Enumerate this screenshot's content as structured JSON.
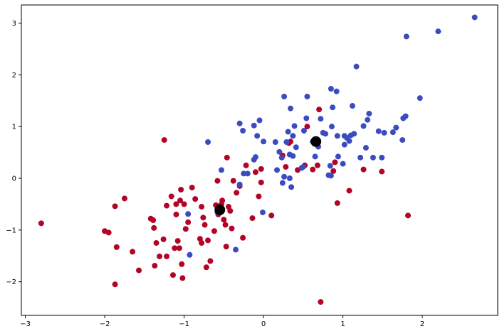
{
  "chart_data": {
    "type": "scatter",
    "title": "",
    "xlabel": "",
    "ylabel": "",
    "xlim": [
      -3.05,
      2.95
    ],
    "ylim": [
      -2.65,
      3.35
    ],
    "xticks": [
      -3,
      -2,
      -1,
      0,
      1,
      2
    ],
    "yticks": [
      -2,
      -1,
      0,
      1,
      2,
      3
    ],
    "xtick_labels": [
      "−3",
      "−2",
      "−1",
      "0",
      "1",
      "2"
    ],
    "ytick_labels": [
      "−2",
      "−1",
      "0",
      "1",
      "2",
      "3"
    ],
    "grid": false,
    "legend": "none",
    "series": [
      {
        "color": "#b40426",
        "points": [
          [
            -2.8,
            -0.87
          ],
          [
            -2.0,
            -1.02
          ],
          [
            -1.95,
            -1.05
          ],
          [
            -1.87,
            -0.54
          ],
          [
            -1.85,
            -1.33
          ],
          [
            -1.87,
            -2.05
          ],
          [
            -1.75,
            -0.39
          ],
          [
            -1.65,
            -1.42
          ],
          [
            -1.57,
            -1.78
          ],
          [
            -1.42,
            -0.78
          ],
          [
            -1.39,
            -0.81
          ],
          [
            -1.38,
            -0.96
          ],
          [
            -1.37,
            -1.69
          ],
          [
            -1.35,
            -1.25
          ],
          [
            -1.31,
            -1.51
          ],
          [
            -1.26,
            -1.18
          ],
          [
            -1.25,
            0.74
          ],
          [
            -1.22,
            -1.51
          ],
          [
            -1.22,
            -0.53
          ],
          [
            -1.16,
            -0.35
          ],
          [
            -1.14,
            -1.87
          ],
          [
            -1.12,
            -1.35
          ],
          [
            -1.1,
            -0.7
          ],
          [
            -1.1,
            -0.5
          ],
          [
            -1.08,
            -1.21
          ],
          [
            -1.06,
            -1.35
          ],
          [
            -1.05,
            -0.43
          ],
          [
            -1.04,
            -0.22
          ],
          [
            -1.03,
            -1.66
          ],
          [
            -1.02,
            -1.93
          ],
          [
            -1.0,
            -0.5
          ],
          [
            -0.98,
            -0.98
          ],
          [
            -0.95,
            -0.85
          ],
          [
            -0.9,
            -0.18
          ],
          [
            -0.86,
            -0.4
          ],
          [
            -0.8,
            -1.17
          ],
          [
            -0.78,
            -1.25
          ],
          [
            -0.76,
            -0.76
          ],
          [
            -0.74,
            -0.9
          ],
          [
            -0.72,
            -1.72
          ],
          [
            -0.7,
            -1.2
          ],
          [
            -0.67,
            -1.6
          ],
          [
            -0.62,
            -1.02
          ],
          [
            -0.6,
            -0.52
          ],
          [
            -0.58,
            -0.05
          ],
          [
            -0.55,
            -0.55
          ],
          [
            -0.52,
            -0.43
          ],
          [
            -0.5,
            -0.8
          ],
          [
            -0.48,
            -0.9
          ],
          [
            -0.47,
            -1.32
          ],
          [
            -0.46,
            0.4
          ],
          [
            -0.44,
            -0.55
          ],
          [
            -0.42,
            -0.63
          ],
          [
            -0.4,
            -0.97
          ],
          [
            -0.38,
            -0.05
          ],
          [
            -0.34,
            -0.28
          ],
          [
            -0.3,
            -0.15
          ],
          [
            -0.26,
            -1.15
          ],
          [
            -0.22,
            0.25
          ],
          [
            -0.14,
            -0.77
          ],
          [
            -0.1,
            0.12
          ],
          [
            -0.06,
            -0.35
          ],
          [
            -0.03,
            0.18
          ],
          [
            -0.03,
            -0.08
          ],
          [
            0.1,
            -0.72
          ],
          [
            0.24,
            0.44
          ],
          [
            0.28,
            0.22
          ],
          [
            0.32,
            0.68
          ],
          [
            0.34,
            0.71
          ],
          [
            0.43,
            0.16
          ],
          [
            0.52,
            0.25
          ],
          [
            0.55,
            1.0
          ],
          [
            0.62,
            0.17
          ],
          [
            0.68,
            0.25
          ],
          [
            0.7,
            1.33
          ],
          [
            0.72,
            -2.39
          ],
          [
            0.88,
            0.14
          ],
          [
            0.9,
            0.31
          ],
          [
            0.93,
            -0.48
          ],
          [
            1.08,
            -0.24
          ],
          [
            1.26,
            0.17
          ],
          [
            1.49,
            0.13
          ],
          [
            1.82,
            -0.72
          ],
          [
            -0.57,
            -0.7
          ],
          [
            -0.53,
            -0.5
          ],
          [
            -0.78,
            -0.55
          ]
        ]
      },
      {
        "color": "#3b4cc0",
        "points": [
          [
            -0.95,
            -0.69
          ],
          [
            -0.93,
            -1.48
          ],
          [
            -0.7,
            0.7
          ],
          [
            -0.58,
            -0.66
          ],
          [
            -0.53,
            0.16
          ],
          [
            -0.35,
            -1.38
          ],
          [
            -0.3,
            -0.12
          ],
          [
            -0.3,
            1.06
          ],
          [
            -0.26,
            0.92
          ],
          [
            -0.25,
            0.09
          ],
          [
            -0.2,
            0.09
          ],
          [
            -0.12,
            0.36
          ],
          [
            -0.12,
            1.02
          ],
          [
            -0.1,
            0.41
          ],
          [
            -0.08,
            0.82
          ],
          [
            -0.05,
            1.12
          ],
          [
            -0.01,
            -0.66
          ],
          [
            0.0,
            0.71
          ],
          [
            0.15,
            0.7
          ],
          [
            0.17,
            0.16
          ],
          [
            0.2,
            0.51
          ],
          [
            0.23,
            0.4
          ],
          [
            0.24,
            -0.09
          ],
          [
            0.26,
            1.58
          ],
          [
            0.26,
            0.03
          ],
          [
            0.29,
            0.7
          ],
          [
            0.31,
            0.9
          ],
          [
            0.33,
            0.46
          ],
          [
            0.33,
            0.0
          ],
          [
            0.34,
            1.35
          ],
          [
            0.35,
            -0.17
          ],
          [
            0.37,
            0.43
          ],
          [
            0.37,
            0.82
          ],
          [
            0.39,
            1.01
          ],
          [
            0.41,
            0.6
          ],
          [
            0.48,
            0.2
          ],
          [
            0.5,
            0.22
          ],
          [
            0.51,
            0.92
          ],
          [
            0.54,
            1.16
          ],
          [
            0.55,
            1.58
          ],
          [
            0.62,
            0.71
          ],
          [
            0.69,
            0.61
          ],
          [
            0.72,
            1.15
          ],
          [
            0.75,
            0.88
          ],
          [
            0.78,
            0.86
          ],
          [
            0.82,
            0.06
          ],
          [
            0.84,
            0.24
          ],
          [
            0.85,
            1.73
          ],
          [
            0.86,
            1.0
          ],
          [
            0.87,
            1.37
          ],
          [
            0.92,
            1.68
          ],
          [
            0.93,
            0.82
          ],
          [
            0.94,
            0.42
          ],
          [
            1.0,
            0.28
          ],
          [
            1.02,
            0.82
          ],
          [
            1.05,
            0.78
          ],
          [
            1.08,
            0.72
          ],
          [
            1.1,
            0.83
          ],
          [
            1.12,
            1.4
          ],
          [
            1.14,
            0.86
          ],
          [
            1.17,
            2.16
          ],
          [
            1.22,
            0.4
          ],
          [
            1.26,
            1.01
          ],
          [
            1.29,
            0.59
          ],
          [
            1.31,
            1.13
          ],
          [
            1.33,
            1.25
          ],
          [
            1.38,
            0.4
          ],
          [
            1.45,
            0.91
          ],
          [
            1.49,
            0.4
          ],
          [
            1.52,
            0.88
          ],
          [
            1.63,
            0.89
          ],
          [
            1.67,
            0.98
          ],
          [
            1.75,
            0.74
          ],
          [
            1.76,
            1.16
          ],
          [
            1.79,
            1.2
          ],
          [
            1.8,
            2.74
          ],
          [
            1.97,
            1.55
          ],
          [
            2.2,
            2.84
          ],
          [
            2.66,
            3.11
          ],
          [
            0.65,
            0.42
          ],
          [
            1.02,
            0.65
          ],
          [
            0.85,
            0.05
          ]
        ]
      },
      {
        "color": "#000000",
        "marker": "large",
        "points": [
          [
            -0.55,
            -0.61
          ],
          [
            0.66,
            0.71
          ]
        ]
      }
    ]
  }
}
